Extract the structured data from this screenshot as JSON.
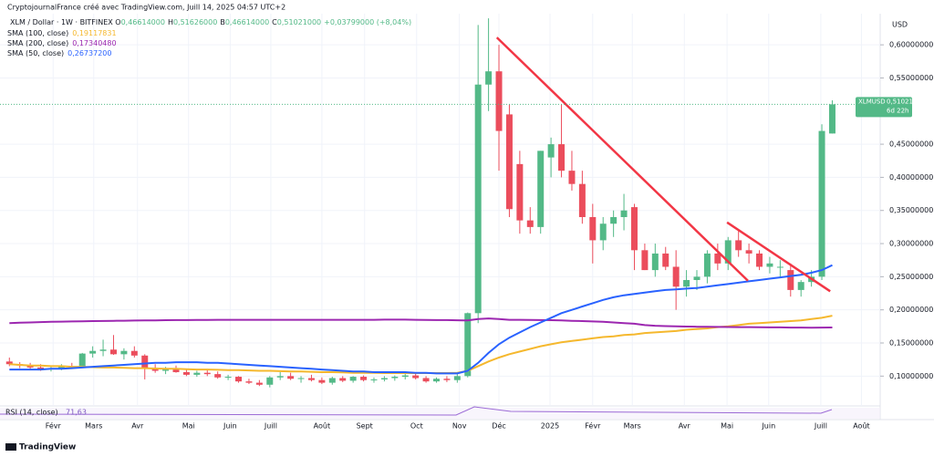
{
  "header": {
    "credit": "CryptojournalFrance créé avec TradingView.com, Juill 14, 2025 04:57 UTC+2",
    "symbol": "XLM / Dollar · 1W · BITFINEX",
    "ohlc": [
      {
        "key": "O",
        "value": "0,46614000"
      },
      {
        "key": "H",
        "value": "0,51626000"
      },
      {
        "key": "B",
        "value": "0,46614000"
      },
      {
        "key": "C",
        "value": "0,51021000"
      }
    ],
    "change": "+0,03799000 (+8,04%)"
  },
  "price_label": {
    "symbol": "XLMUSD",
    "value": "0,51021000",
    "countdown": "6d 22h"
  },
  "currency": "USD",
  "rsi": {
    "name": "RSI (14, close)",
    "value": "71,63"
  },
  "footer": {
    "logo": "TradingView"
  },
  "chart_data": {
    "type": "candlestick",
    "up_color": "#53b987",
    "down_color": "#eb4d5c",
    "xlim": [
      -0.9,
      83.6
    ],
    "ylim": [
      0.055,
      0.647
    ],
    "grid": true,
    "xticks": [
      {
        "value": 4.2,
        "label": "Févr"
      },
      {
        "value": 8.1,
        "label": "Mars"
      },
      {
        "value": 12.3,
        "label": "Avr"
      },
      {
        "value": 17.2,
        "label": "Mai"
      },
      {
        "value": 21.2,
        "label": "Juin"
      },
      {
        "value": 25.1,
        "label": "Juill"
      },
      {
        "value": 30.0,
        "label": "Août"
      },
      {
        "value": 34.1,
        "label": "Sept"
      },
      {
        "value": 39.1,
        "label": "Oct"
      },
      {
        "value": 43.2,
        "label": "Nov"
      },
      {
        "value": 47.0,
        "label": "Déc"
      },
      {
        "value": 51.9,
        "label": "2025"
      },
      {
        "value": 56.0,
        "label": "Févr"
      },
      {
        "value": 59.8,
        "label": "Mars"
      },
      {
        "value": 64.8,
        "label": "Avr"
      },
      {
        "value": 68.9,
        "label": "Mai"
      },
      {
        "value": 72.9,
        "label": "Juin"
      },
      {
        "value": 77.9,
        "label": "Juill"
      },
      {
        "value": 81.8,
        "label": "Août"
      }
    ],
    "yticks": [
      {
        "value": 0.1,
        "label": "0,10000000"
      },
      {
        "value": 0.15,
        "label": "0,15000000"
      },
      {
        "value": 0.2,
        "label": "0,20000000"
      },
      {
        "value": 0.25,
        "label": "0,25000000"
      },
      {
        "value": 0.3,
        "label": "0,30000000"
      },
      {
        "value": 0.35,
        "label": "0,35000000"
      },
      {
        "value": 0.4,
        "label": "0,40000000"
      },
      {
        "value": 0.45,
        "label": "0,45000000"
      },
      {
        "value": 0.55,
        "label": "0,55000000"
      },
      {
        "value": 0.6,
        "label": "0,60000000"
      }
    ],
    "ohlc": [
      [
        0.122,
        0.128,
        0.115,
        0.118
      ],
      [
        0.118,
        0.121,
        0.112,
        0.116
      ],
      [
        0.116,
        0.12,
        0.11,
        0.113
      ],
      [
        0.113,
        0.118,
        0.108,
        0.111
      ],
      [
        0.111,
        0.115,
        0.107,
        0.112
      ],
      [
        0.112,
        0.118,
        0.109,
        0.115
      ],
      [
        0.115,
        0.12,
        0.111,
        0.113
      ],
      [
        0.113,
        0.135,
        0.112,
        0.134
      ],
      [
        0.134,
        0.145,
        0.128,
        0.138
      ],
      [
        0.138,
        0.155,
        0.13,
        0.14
      ],
      [
        0.14,
        0.162,
        0.132,
        0.133
      ],
      [
        0.133,
        0.142,
        0.125,
        0.138
      ],
      [
        0.138,
        0.145,
        0.128,
        0.131
      ],
      [
        0.131,
        0.133,
        0.095,
        0.112
      ],
      [
        0.112,
        0.118,
        0.105,
        0.108
      ],
      [
        0.108,
        0.114,
        0.103,
        0.11
      ],
      [
        0.11,
        0.116,
        0.105,
        0.106
      ],
      [
        0.106,
        0.11,
        0.1,
        0.102
      ],
      [
        0.102,
        0.108,
        0.099,
        0.105
      ],
      [
        0.105,
        0.109,
        0.1,
        0.103
      ],
      [
        0.103,
        0.107,
        0.096,
        0.098
      ],
      [
        0.098,
        0.102,
        0.094,
        0.099
      ],
      [
        0.099,
        0.1,
        0.09,
        0.092
      ],
      [
        0.092,
        0.096,
        0.088,
        0.09
      ],
      [
        0.09,
        0.094,
        0.085,
        0.087
      ],
      [
        0.087,
        0.1,
        0.083,
        0.098
      ],
      [
        0.098,
        0.106,
        0.094,
        0.1
      ],
      [
        0.1,
        0.105,
        0.094,
        0.096
      ],
      [
        0.096,
        0.1,
        0.09,
        0.097
      ],
      [
        0.097,
        0.102,
        0.092,
        0.094
      ],
      [
        0.094,
        0.098,
        0.088,
        0.09
      ],
      [
        0.09,
        0.099,
        0.087,
        0.097
      ],
      [
        0.097,
        0.1,
        0.091,
        0.093
      ],
      [
        0.093,
        0.1,
        0.09,
        0.099
      ],
      [
        0.099,
        0.101,
        0.092,
        0.094
      ],
      [
        0.094,
        0.098,
        0.09,
        0.095
      ],
      [
        0.095,
        0.1,
        0.092,
        0.097
      ],
      [
        0.097,
        0.101,
        0.093,
        0.099
      ],
      [
        0.099,
        0.104,
        0.095,
        0.101
      ],
      [
        0.101,
        0.105,
        0.095,
        0.097
      ],
      [
        0.097,
        0.1,
        0.09,
        0.092
      ],
      [
        0.092,
        0.098,
        0.09,
        0.096
      ],
      [
        0.096,
        0.1,
        0.091,
        0.094
      ],
      [
        0.094,
        0.105,
        0.09,
        0.1
      ],
      [
        0.1,
        0.196,
        0.098,
        0.195
      ],
      [
        0.195,
        0.63,
        0.18,
        0.54
      ],
      [
        0.54,
        0.64,
        0.5,
        0.56
      ],
      [
        0.56,
        0.6,
        0.41,
        0.47
      ],
      [
        0.495,
        0.51,
        0.34,
        0.352
      ],
      [
        0.42,
        0.44,
        0.315,
        0.335
      ],
      [
        0.335,
        0.355,
        0.315,
        0.325
      ],
      [
        0.325,
        0.44,
        0.315,
        0.44
      ],
      [
        0.43,
        0.46,
        0.4,
        0.45
      ],
      [
        0.45,
        0.51,
        0.4,
        0.41
      ],
      [
        0.41,
        0.44,
        0.38,
        0.39
      ],
      [
        0.39,
        0.41,
        0.33,
        0.34
      ],
      [
        0.34,
        0.36,
        0.27,
        0.305
      ],
      [
        0.305,
        0.34,
        0.29,
        0.33
      ],
      [
        0.33,
        0.35,
        0.31,
        0.34
      ],
      [
        0.34,
        0.375,
        0.32,
        0.35
      ],
      [
        0.355,
        0.36,
        0.26,
        0.29
      ],
      [
        0.29,
        0.3,
        0.26,
        0.26
      ],
      [
        0.26,
        0.3,
        0.25,
        0.285
      ],
      [
        0.285,
        0.295,
        0.26,
        0.265
      ],
      [
        0.265,
        0.29,
        0.2,
        0.235
      ],
      [
        0.235,
        0.26,
        0.22,
        0.245
      ],
      [
        0.245,
        0.26,
        0.23,
        0.25
      ],
      [
        0.25,
        0.29,
        0.24,
        0.285
      ],
      [
        0.285,
        0.3,
        0.26,
        0.27
      ],
      [
        0.27,
        0.31,
        0.26,
        0.305
      ],
      [
        0.305,
        0.32,
        0.28,
        0.29
      ],
      [
        0.29,
        0.3,
        0.27,
        0.285
      ],
      [
        0.285,
        0.29,
        0.26,
        0.265
      ],
      [
        0.265,
        0.28,
        0.255,
        0.27
      ],
      [
        0.265,
        0.275,
        0.25,
        0.265
      ],
      [
        0.26,
        0.27,
        0.22,
        0.23
      ],
      [
        0.23,
        0.245,
        0.22,
        0.242
      ],
      [
        0.242,
        0.26,
        0.235,
        0.25
      ],
      [
        0.25,
        0.48,
        0.245,
        0.47
      ],
      [
        0.46614,
        0.51626,
        0.46614,
        0.51021
      ]
    ],
    "series": [
      {
        "name": "SMA (100, close)",
        "value_label": "0,19117831",
        "color": "#f5b82e",
        "values": [
          0.118,
          0.117,
          0.116,
          0.116,
          0.115,
          0.115,
          0.114,
          0.114,
          0.1135,
          0.113,
          0.113,
          0.1125,
          0.112,
          0.112,
          0.1115,
          0.111,
          0.111,
          0.1105,
          0.11,
          0.11,
          0.1095,
          0.109,
          0.109,
          0.1085,
          0.108,
          0.108,
          0.1075,
          0.107,
          0.107,
          0.1065,
          0.106,
          0.106,
          0.1055,
          0.105,
          0.105,
          0.1048,
          0.1046,
          0.1045,
          0.1045,
          0.1045,
          0.1045,
          0.1045,
          0.1045,
          0.105,
          0.108,
          0.115,
          0.122,
          0.128,
          0.133,
          0.137,
          0.141,
          0.145,
          0.148,
          0.151,
          0.153,
          0.155,
          0.157,
          0.159,
          0.16,
          0.162,
          0.163,
          0.165,
          0.166,
          0.167,
          0.168,
          0.17,
          0.171,
          0.172,
          0.174,
          0.175,
          0.177,
          0.179,
          0.18,
          0.181,
          0.182,
          0.183,
          0.184,
          0.186,
          0.188,
          0.19117831
        ]
      },
      {
        "name": "SMA (200, close)",
        "value_label": "0,17340480",
        "color": "#9c27b0",
        "values": [
          0.18,
          0.1805,
          0.181,
          0.1815,
          0.182,
          0.1822,
          0.1825,
          0.1828,
          0.183,
          0.1832,
          0.1834,
          0.1836,
          0.1838,
          0.184,
          0.1842,
          0.1844,
          0.1845,
          0.1846,
          0.1847,
          0.1848,
          0.1849,
          0.185,
          0.185,
          0.185,
          0.185,
          0.185,
          0.185,
          0.185,
          0.185,
          0.185,
          0.185,
          0.185,
          0.185,
          0.185,
          0.185,
          0.185,
          0.1852,
          0.1852,
          0.1852,
          0.185,
          0.1848,
          0.1846,
          0.1845,
          0.1843,
          0.184,
          0.186,
          0.187,
          0.186,
          0.185,
          0.185,
          0.1848,
          0.1846,
          0.1844,
          0.184,
          0.1835,
          0.183,
          0.1825,
          0.182,
          0.181,
          0.18,
          0.179,
          0.177,
          0.176,
          0.1755,
          0.175,
          0.1748,
          0.1745,
          0.1743,
          0.1742,
          0.1741,
          0.174,
          0.174,
          0.1738,
          0.1736,
          0.1735,
          0.1733,
          0.1732,
          0.1731,
          0.1732,
          0.1734048
        ]
      },
      {
        "name": "SMA (50, close)",
        "value_label": "0,26737200",
        "color": "#2962ff",
        "values": [
          0.11,
          0.11,
          0.11,
          0.11,
          0.111,
          0.111,
          0.112,
          0.113,
          0.114,
          0.115,
          0.116,
          0.117,
          0.118,
          0.119,
          0.12,
          0.12,
          0.121,
          0.121,
          0.121,
          0.12,
          0.12,
          0.119,
          0.118,
          0.117,
          0.116,
          0.115,
          0.114,
          0.113,
          0.112,
          0.111,
          0.11,
          0.109,
          0.108,
          0.107,
          0.107,
          0.106,
          0.106,
          0.106,
          0.106,
          0.105,
          0.105,
          0.104,
          0.104,
          0.104,
          0.108,
          0.12,
          0.135,
          0.148,
          0.158,
          0.166,
          0.174,
          0.181,
          0.188,
          0.195,
          0.2,
          0.205,
          0.21,
          0.215,
          0.219,
          0.222,
          0.224,
          0.226,
          0.228,
          0.23,
          0.231,
          0.232,
          0.233,
          0.235,
          0.237,
          0.239,
          0.241,
          0.243,
          0.245,
          0.247,
          0.249,
          0.251,
          0.253,
          0.256,
          0.26,
          0.267372
        ]
      }
    ],
    "trendlines": [
      {
        "color": "#f23645",
        "x": [
          46.8,
          70.9
        ],
        "y": [
          0.611,
          0.244
        ]
      },
      {
        "color": "#f23645",
        "x": [
          68.9,
          78.8
        ],
        "y": [
          0.332,
          0.228
        ]
      }
    ]
  }
}
